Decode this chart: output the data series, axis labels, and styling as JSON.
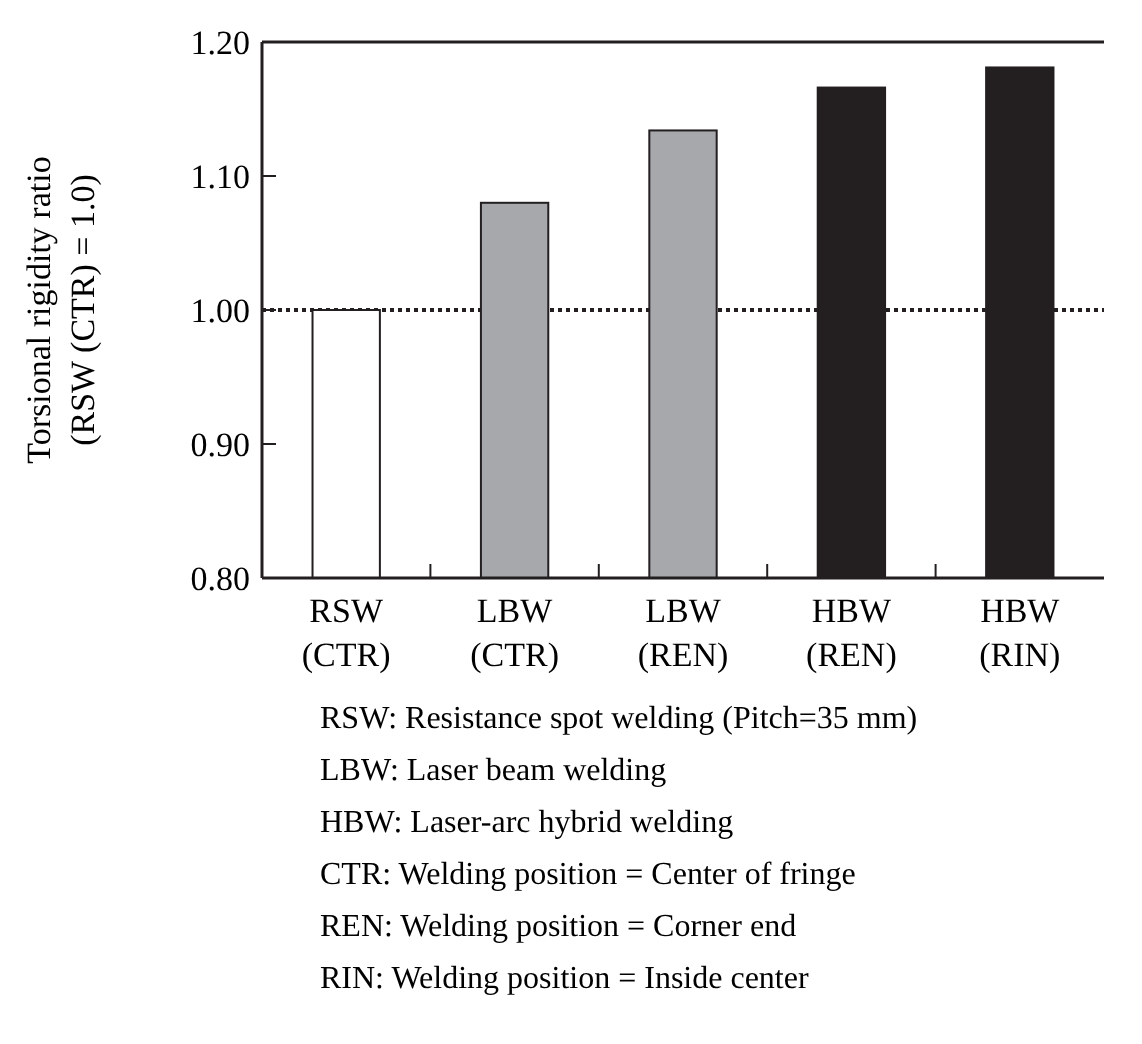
{
  "chart_data": {
    "type": "bar",
    "ylabel": "Torsional rigidity ratio\n(RSW (CTR) = 1.0)",
    "categories": [
      "RSW\n(CTR)",
      "LBW\n(CTR)",
      "LBW\n(REN)",
      "HBW\n(REN)",
      "HBW\n(RIN)"
    ],
    "values": [
      1.0,
      1.08,
      1.134,
      1.166,
      1.181
    ],
    "colors": [
      "#ffffff",
      "#a7a8ac",
      "#a7a8ac",
      "#231f20",
      "#231f20"
    ],
    "ylim": [
      0.8,
      1.2
    ],
    "yticks": [
      {
        "value": 0.8,
        "label": "0.80"
      },
      {
        "value": 0.9,
        "label": "0.90"
      },
      {
        "value": 1.0,
        "label": "1.00"
      },
      {
        "value": 1.1,
        "label": "1.10"
      },
      {
        "value": 1.2,
        "label": "1.20"
      }
    ],
    "ref_lines": [
      {
        "axis": "y",
        "value": 1.0,
        "label": null,
        "line_style": "dotted",
        "color": "#231f20"
      }
    ],
    "grid": false,
    "annotations": [
      "RSW: Resistance spot welding (Pitch=35 mm)",
      "LBW: Laser beam welding",
      "HBW: Laser-arc hybrid welding",
      "CTR: Welding position = Center of fringe",
      "REN: Welding position = Corner end",
      "RIN: Welding position = Inside center"
    ]
  }
}
